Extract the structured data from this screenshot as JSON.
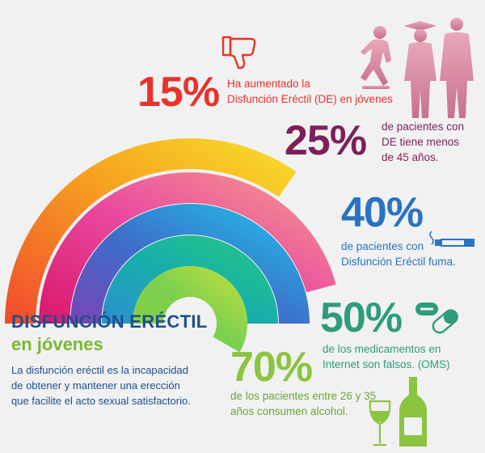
{
  "title": {
    "line1": "DISFUNCIÓN ERÉCTIL",
    "line2": "en jóvenes"
  },
  "description": [
    "La disfunción eréctil es la incapacidad",
    "de obtener y mantener una erección",
    "que facilite el acto sexual satisfactorio."
  ],
  "stats": [
    {
      "id": "stat-15",
      "value": "15%",
      "color": "#e8332b",
      "text": [
        "Ha aumentado la",
        "Disfunción Eréctil (DE) en jóvenes"
      ],
      "icon": "thumbs-down-icon"
    },
    {
      "id": "stat-25",
      "value": "25%",
      "color": "#7d1f5b",
      "text": [
        "de pacientes con",
        "DE tiene menos",
        "de 45 años."
      ],
      "icon": "people-silhouettes"
    },
    {
      "id": "stat-40",
      "value": "40%",
      "color": "#2a72c2",
      "text": [
        "de pacientes con",
        "Disfunción Eréctil fuma."
      ],
      "icon": "cigarette-icon"
    },
    {
      "id": "stat-50",
      "value": "50%",
      "color": "#2e9c7c",
      "text": [
        "de los medicamentos en",
        "Internet son falsos. (OMS)"
      ],
      "icon": "pills-icon"
    },
    {
      "id": "stat-70",
      "value": "70%",
      "color": "#8bc43f",
      "text": [
        "de los pacientes entre 26 y 35",
        "años consumen alcohol."
      ],
      "icon": "wine-bottle-glass-icon"
    }
  ],
  "colors": {
    "background": "#f1f1f2",
    "arc1": [
      "#f2492e",
      "#f6a21f",
      "#f7e12a"
    ],
    "arc2": [
      "#e2216a",
      "#e94aa0",
      "#f7a28a"
    ],
    "arc3": [
      "#7b43b5",
      "#3d6ec9",
      "#1fc7ec"
    ],
    "arc4": [
      "#2c8fd0",
      "#16b0a8",
      "#28c97f"
    ],
    "arc5": [
      "#a9c736",
      "#7bd04f",
      "#c3de3a"
    ]
  }
}
